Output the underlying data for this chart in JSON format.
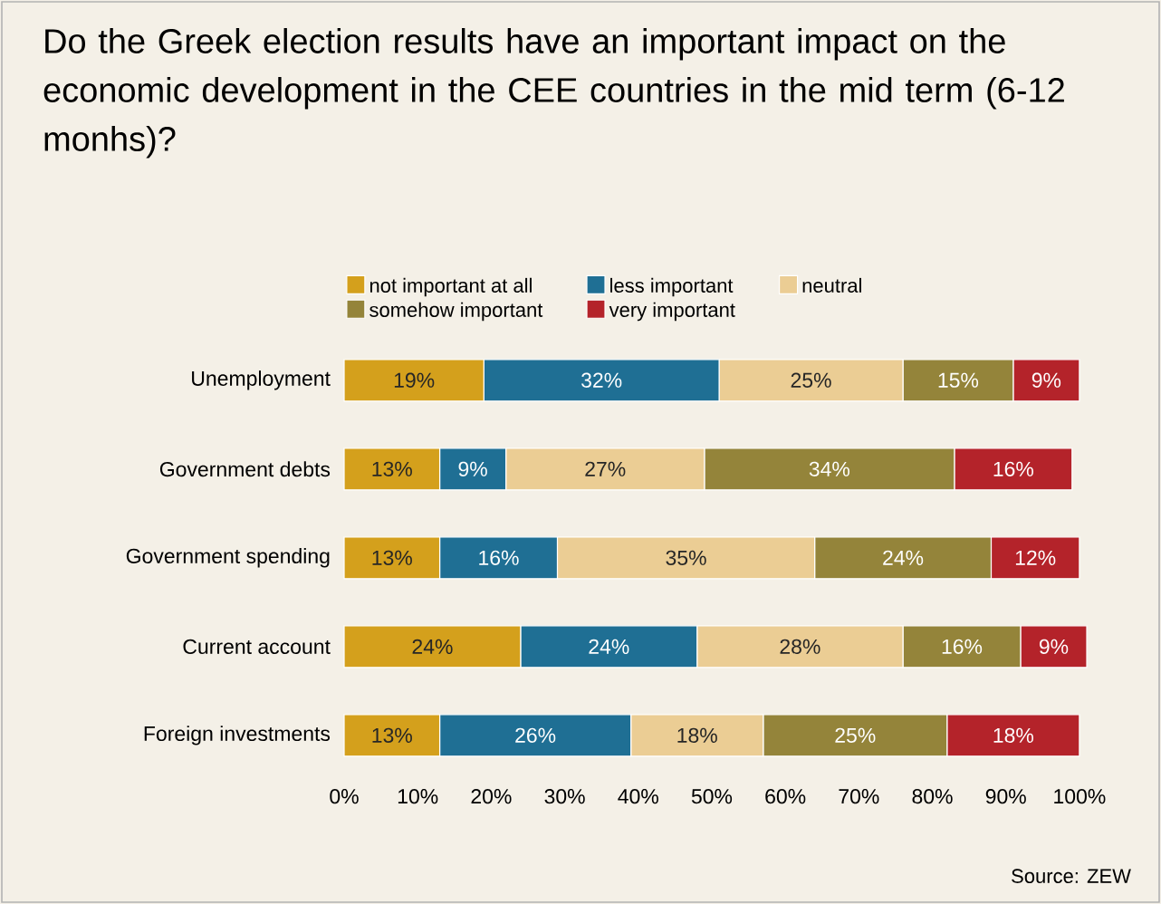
{
  "chart_data": {
    "type": "bar",
    "orientation": "horizontal",
    "stacked": true,
    "title": "Do the Greek election results have an important impact on the economic development in the CEE countries in the mid term (6-12 monhs)?",
    "categories": [
      "Unemployment",
      "Government debts",
      "Government spending",
      "Current account",
      "Foreign investments"
    ],
    "series": [
      {
        "name": "not important at all",
        "color": "#d4a01c",
        "values": [
          19,
          13,
          13,
          24,
          13
        ],
        "value_labels": [
          "19%",
          "13%",
          "13%",
          "24%",
          "13%"
        ]
      },
      {
        "name": "less important",
        "color": "#1f6f94",
        "values": [
          32,
          9,
          16,
          24,
          26
        ],
        "value_labels": [
          "32%",
          "9%",
          "16%",
          "24%",
          "26%"
        ]
      },
      {
        "name": "neutral",
        "color": "#ebcd94",
        "values": [
          25,
          27,
          35,
          28,
          18
        ],
        "value_labels": [
          "25%",
          "27%",
          "35%",
          "28%",
          "18%"
        ]
      },
      {
        "name": "somehow important",
        "color": "#94843a",
        "values": [
          15,
          34,
          24,
          16,
          25
        ],
        "value_labels": [
          "15%",
          "34%",
          "24%",
          "16%",
          "25%"
        ]
      },
      {
        "name": "very important",
        "color": "#b4232a",
        "values": [
          9,
          16,
          12,
          9,
          18
        ],
        "value_labels": [
          "9%",
          "16%",
          "12%",
          "9%",
          "18%"
        ]
      }
    ],
    "xlim": [
      0,
      101
    ],
    "xticks": [
      {
        "value": 0,
        "label": "0%"
      },
      {
        "value": 10,
        "label": "10%"
      },
      {
        "value": 20,
        "label": "20%"
      },
      {
        "value": 30,
        "label": "30%"
      },
      {
        "value": 40,
        "label": "40%"
      },
      {
        "value": 50,
        "label": "50%"
      },
      {
        "value": 60,
        "label": "60%"
      },
      {
        "value": 70,
        "label": "70%"
      },
      {
        "value": 80,
        "label": "80%"
      },
      {
        "value": 90,
        "label": "90%"
      },
      {
        "value": 100,
        "label": "100%"
      }
    ],
    "legend": "top",
    "grid": false,
    "annotations": [
      "Source: ZEW"
    ]
  }
}
